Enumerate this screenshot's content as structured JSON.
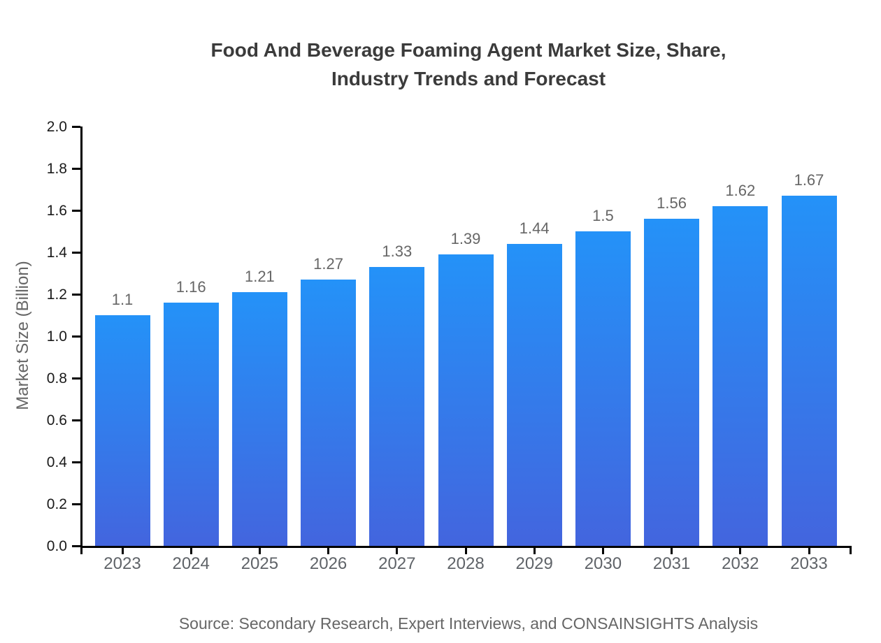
{
  "title": {
    "line1": "Food And Beverage Foaming Agent Market Size, Share,",
    "line2": "Industry Trends and Forecast"
  },
  "chart_data": {
    "type": "bar",
    "title": "Food And Beverage Foaming Agent Market Size, Share, Industry Trends and Forecast",
    "categories": [
      "2023",
      "2024",
      "2025",
      "2026",
      "2027",
      "2028",
      "2029",
      "2030",
      "2031",
      "2032",
      "2033"
    ],
    "values": [
      1.1,
      1.16,
      1.21,
      1.27,
      1.33,
      1.39,
      1.44,
      1.5,
      1.56,
      1.62,
      1.67
    ],
    "xlabel": "",
    "ylabel": "Market Size (Billion)",
    "ylim": [
      0.0,
      2.0
    ],
    "ytick_step": 0.2,
    "ytick_labels": [
      "0.0",
      "0.2",
      "0.4",
      "0.6",
      "0.8",
      "1.0",
      "1.2",
      "1.4",
      "1.6",
      "1.8",
      "2.0"
    ],
    "grid": false,
    "legend": "none",
    "value_labels_shown": true
  },
  "source": "Source: Secondary Research, Expert Interviews, and CONSAINSIGHTS Analysis",
  "colors": {
    "bar_gradient_top": "#2492F8",
    "bar_gradient_bottom": "#4365DE",
    "axis": "#000000",
    "y_tick_label": "#1a1a1a",
    "x_tick_label": "#5f6368",
    "value_label": "#666666",
    "title_text": "#3b3b3b",
    "source_text": "#666666",
    "background": "#ffffff"
  }
}
